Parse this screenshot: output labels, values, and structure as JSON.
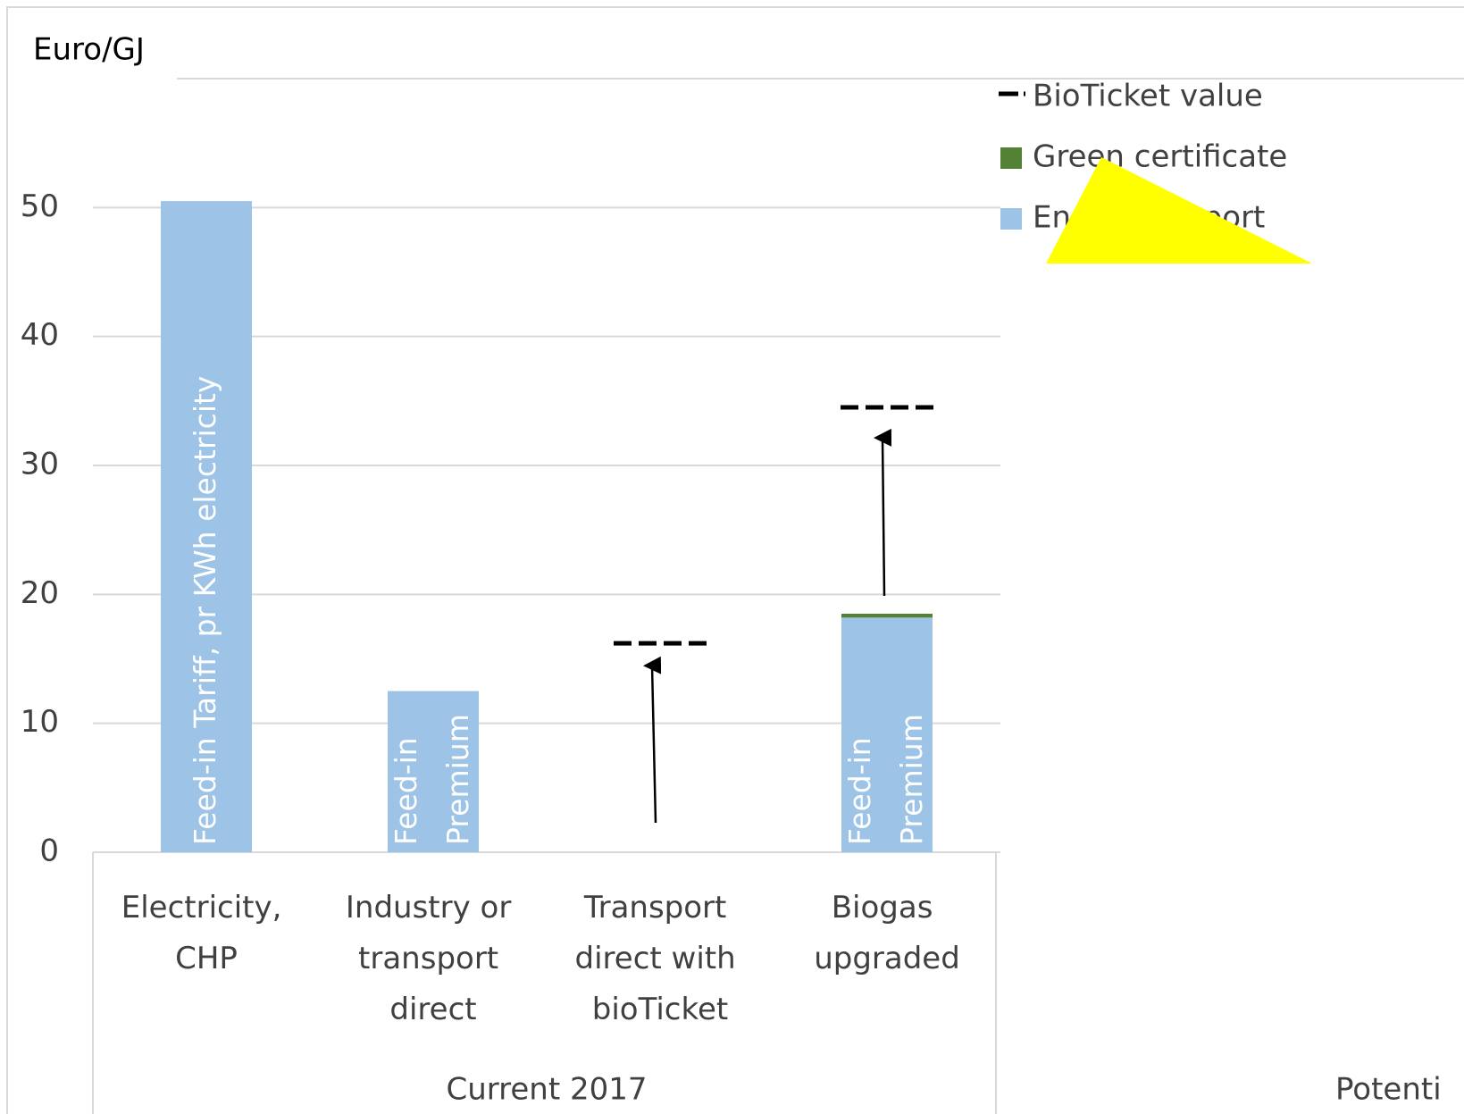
{
  "chart_data": {
    "type": "bar",
    "stacked": true,
    "y_axis_label": "Euro/GJ",
    "categories": [
      "Electricity, CHP",
      "Industry or transport direct",
      "Transport direct with bioTicket",
      "Biogas upgraded"
    ],
    "groups": [
      {
        "label": "Current 2017"
      },
      {
        "label": "Potenti"
      }
    ],
    "series": [
      {
        "name": "BioTicket value",
        "color": "#000000",
        "marker": "dash",
        "values": [
          null,
          null,
          16.2,
          34.5
        ]
      },
      {
        "name": "Green certificate",
        "color": "#548235",
        "values": [
          0,
          0,
          0,
          0.3
        ]
      },
      {
        "name": "Energy support",
        "color": "#9dc3e6",
        "values": [
          50.5,
          12.5,
          0,
          18.2
        ]
      }
    ],
    "bar_labels": [
      "Feed-in Tariff, pr KWh electricity",
      "Feed-in Premium",
      null,
      "Feed-in Premium"
    ],
    "ylim": [
      0,
      60
    ],
    "yticks": [
      0,
      10,
      20,
      30,
      40,
      50
    ],
    "grid": true
  }
}
